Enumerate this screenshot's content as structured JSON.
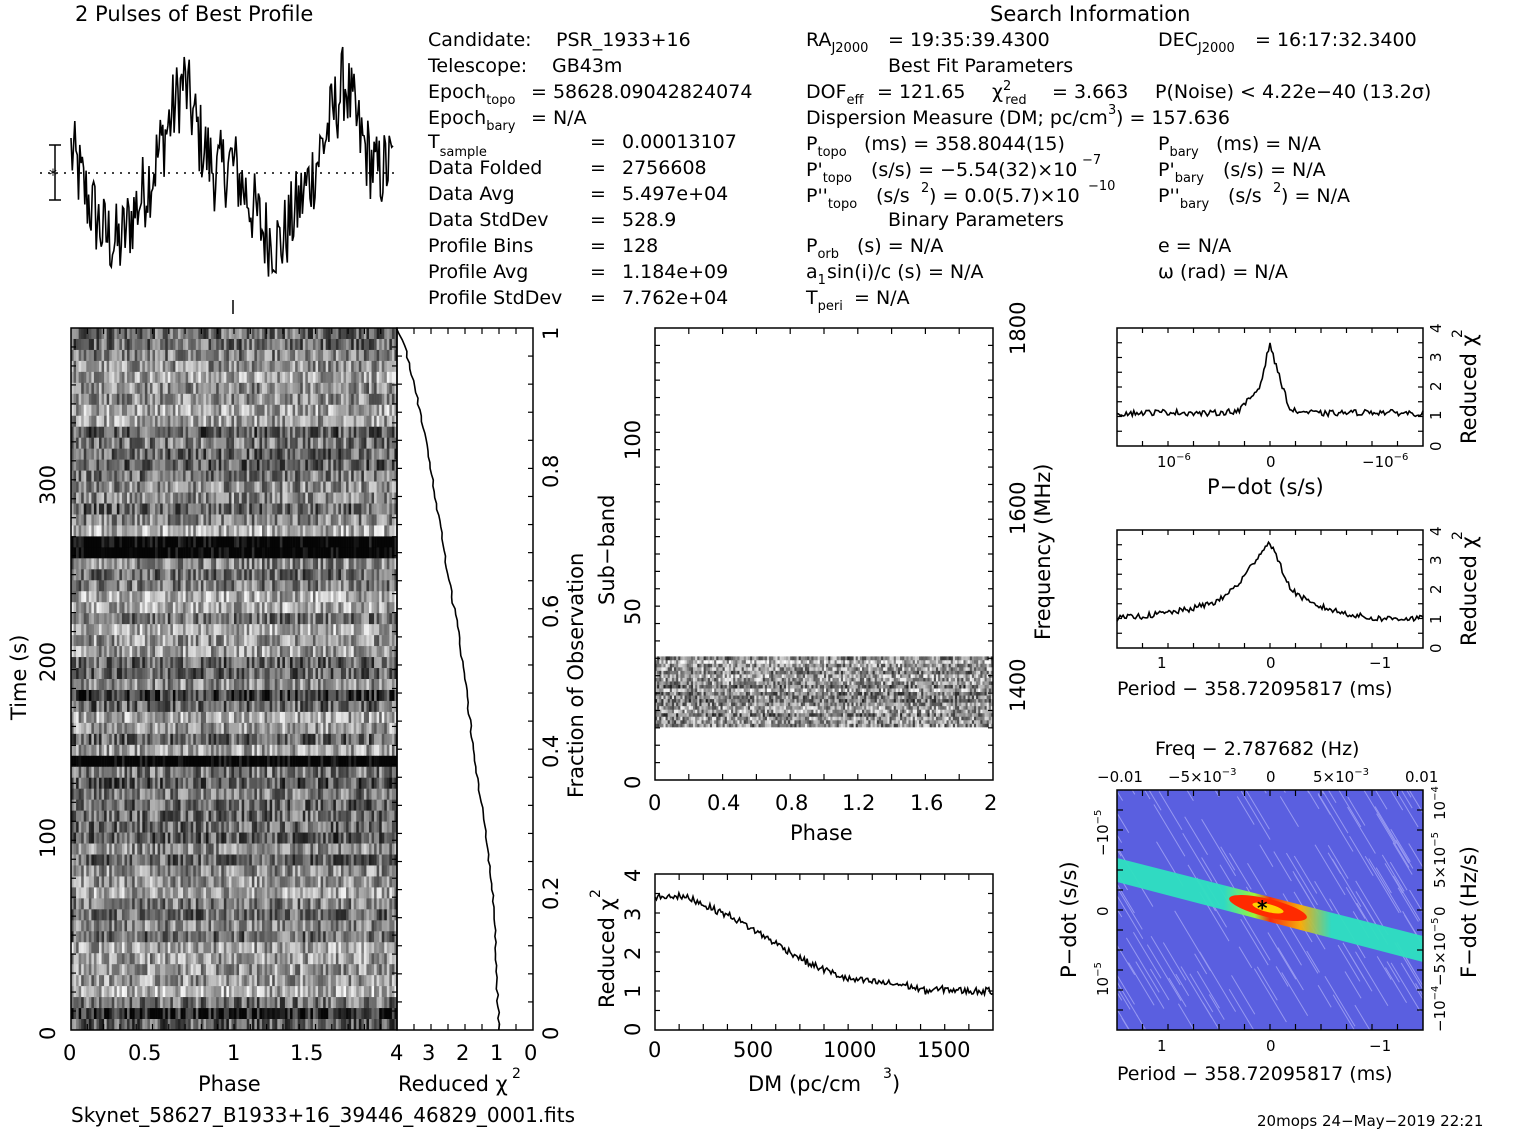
{
  "titles": {
    "profile_title": "2 Pulses of Best Profile",
    "search_title": "Search Information",
    "best_fit_title": "Best Fit Parameters",
    "binary_title": "Binary Parameters"
  },
  "header": {
    "candidate_label": "Candidate:",
    "candidate_value": "PSR_1933+16",
    "telescope_label": "Telescope:",
    "telescope_value": "GB43m",
    "epoch_topo_value": "= 58628.09042824074",
    "epoch_bary_value": "= N/A",
    "tsample_value": "0.00013107",
    "data_folded_label": "Data Folded",
    "data_folded_value": "2756608",
    "data_avg_label": "Data Avg",
    "data_avg_value": "5.497e+04",
    "data_stddev_label": "Data StdDev",
    "data_stddev_value": "528.9",
    "profile_bins_label": "Profile Bins",
    "profile_bins_value": "128",
    "profile_avg_label": "Profile Avg",
    "profile_avg_value": "1.184e+09",
    "profile_stddev_label": "Profile StdDev",
    "profile_stddev_value": "7.762e+04",
    "eq": "="
  },
  "search": {
    "ra": "= 19:35:39.4300",
    "dec": "= 16:17:32.3400",
    "dof_value": "= 121.65",
    "chi2_value": "= 3.663",
    "pnoise": "P(Noise) < 4.22e−40   (13.2σ)",
    "dm_line": "Dispersion Measure (DM; pc/cm",
    "dm_value": ") = 157.636",
    "ptopo": "(ms) =  358.8044(15)",
    "pbary": "(ms) = N/A",
    "pdtopo": "(s/s) = −5.54(32)×10",
    "pdtopo_exp": "−7",
    "pdbary": "(s/s) = N/A",
    "pddtopo": "(s/s",
    "pddtopo_val": ") = 0.0(5.7)×10",
    "pddtopo_exp": "−10",
    "pddbary": "(s/s",
    "pddbary_val": ") = N/A",
    "porb": "(s) = N/A",
    "asini": "sin(i)/c (s) = N/A",
    "tperi": "= N/A",
    "ecc": "e = N/A",
    "omega": "ω (rad) = N/A"
  },
  "axes_labels": {
    "time": "Time (s)",
    "phase": "Phase",
    "reduced_chi2": "Reduced χ",
    "fraction": "Fraction of Observation",
    "subband": "Sub−band",
    "frequency": "Frequency (MHz)",
    "dm": "DM (pc/cm",
    "pdot": "P−dot (s/s)",
    "period": "Period − 358.72095817 (ms)",
    "freq_top": "Freq − 2.787682 (Hz)",
    "fdot": "F−dot (Hz/s)"
  },
  "footer": {
    "filename": "Skynet_58627_B1933+16_39446_46829_0001.fits",
    "stamp": "20mops 24−May−2019 22:21"
  },
  "colors": {
    "ink": "#000000",
    "bg": "#ffffff",
    "map_bg": "#5a5fe0",
    "map_hot": "#ff2a00",
    "map_mid": "#2ee0c0"
  },
  "chart_data": [
    {
      "type": "line",
      "title": "2 Pulses of Best Profile",
      "x": [
        0,
        0.1,
        0.2,
        0.3,
        0.4,
        0.5,
        0.6,
        0.7,
        0.8,
        0.9,
        1.0,
        1.1,
        1.2,
        1.3,
        1.4,
        1.5,
        1.6,
        1.7,
        1.8,
        1.9,
        2.0
      ],
      "values": [
        0.55,
        0.35,
        0.2,
        0.15,
        0.3,
        0.45,
        0.65,
        0.85,
        0.6,
        0.45,
        0.5,
        0.35,
        0.2,
        0.15,
        0.3,
        0.45,
        0.65,
        0.85,
        0.6,
        0.45,
        0.5
      ]
    },
    {
      "type": "heatmap",
      "title": "",
      "xlabel": "Phase",
      "ylabel": "Time (s)",
      "xlim": [
        0,
        2
      ],
      "ylim": [
        0,
        370
      ],
      "xticks": [
        "0",
        "0.5",
        "1",
        "1.5"
      ],
      "yticks": [
        "0",
        "100",
        "200",
        "300"
      ],
      "dark_rows_s": [
        10,
        140,
        178,
        255
      ]
    },
    {
      "type": "line",
      "xlabel": "Reduced χ2",
      "ylabel": "Fraction of Observation",
      "xlim": [
        4,
        0
      ],
      "ylim": [
        0,
        1
      ],
      "xticks": [
        "4",
        "3",
        "2",
        "1",
        "0"
      ],
      "yticks": [
        "0",
        "0.2",
        "0.4",
        "0.6",
        "0.8",
        "1"
      ],
      "x": [
        1.0,
        1.05,
        1.1,
        1.2,
        1.4,
        1.6,
        1.8,
        2.0,
        2.2,
        2.4,
        2.6,
        2.8,
        3.0,
        3.2,
        3.4,
        3.6,
        3.8,
        4.0
      ],
      "y": [
        0.0,
        0.06,
        0.12,
        0.2,
        0.28,
        0.35,
        0.42,
        0.5,
        0.57,
        0.62,
        0.68,
        0.74,
        0.8,
        0.85,
        0.9,
        0.94,
        0.98,
        1.0
      ]
    },
    {
      "type": "heatmap",
      "xlabel": "Phase",
      "ylabel": "Sub−band",
      "y2label": "Frequency (MHz)",
      "xlim": [
        0,
        2
      ],
      "ylim": [
        0,
        128
      ],
      "xticks": [
        "0",
        "0.4",
        "0.8",
        "1.2",
        "1.6",
        "2"
      ],
      "yticks": [
        "0",
        "50",
        "100"
      ],
      "y2ticks": [
        "1400",
        "1600",
        "1800"
      ],
      "band_subbands": [
        15,
        35
      ]
    },
    {
      "type": "line",
      "xlabel": "DM (pc/cm3)",
      "ylabel": "Reduced χ2",
      "xlim": [
        0,
        1750
      ],
      "ylim": [
        0,
        4
      ],
      "xticks": [
        "0",
        "500",
        "1000",
        "1500"
      ],
      "yticks": [
        "0",
        "1",
        "2",
        "3",
        "4"
      ],
      "x": [
        0,
        100,
        200,
        300,
        400,
        500,
        600,
        700,
        800,
        900,
        1000,
        1100,
        1200,
        1300,
        1400,
        1500,
        1600,
        1750
      ],
      "y": [
        3.4,
        3.45,
        3.35,
        3.1,
        2.9,
        2.6,
        2.3,
        2.0,
        1.7,
        1.5,
        1.3,
        1.25,
        1.2,
        1.15,
        1.0,
        1.05,
        1.0,
        1.0
      ]
    },
    {
      "type": "line",
      "xlabel": "P−dot (s/s)",
      "ylabel": "Reduced χ2",
      "xlim": [
        1.5e-06,
        -1.5e-06
      ],
      "ylim": [
        0,
        4
      ],
      "xticks": [
        "10−6",
        "0",
        "−10−6"
      ],
      "yticks": [
        "0",
        "1",
        "2",
        "3",
        "4"
      ],
      "x": [
        1.5,
        1.0,
        0.6,
        0.3,
        0.1,
        0.0,
        -0.05,
        -0.2,
        -0.5,
        -1.0,
        -1.5
      ],
      "y": [
        1.1,
        1.15,
        1.1,
        1.2,
        2.0,
        3.5,
        2.8,
        1.2,
        1.1,
        1.15,
        1.1
      ]
    },
    {
      "type": "line",
      "xlabel": "Period − 358.72095817 (ms)",
      "ylabel": "Reduced χ2",
      "xlim": [
        1.5,
        -1.5
      ],
      "ylim": [
        0,
        4
      ],
      "xticks": [
        "1",
        "0",
        "−1"
      ],
      "yticks": [
        "0",
        "1",
        "2",
        "3",
        "4"
      ],
      "x": [
        1.5,
        1.2,
        0.8,
        0.5,
        0.3,
        0.1,
        0.0,
        -0.2,
        -0.4,
        -0.7,
        -1.0,
        -1.5
      ],
      "y": [
        1.0,
        1.1,
        1.3,
        1.6,
        2.2,
        3.2,
        3.6,
        2.0,
        1.5,
        1.2,
        1.0,
        1.0
      ]
    },
    {
      "type": "heatmap",
      "xlabel": "Period − 358.72095817 (ms)",
      "ylabel": "P−dot (s/s)",
      "x2label": "Freq − 2.787682 (Hz)",
      "y2label": "F−dot (Hz/s)",
      "xticks": [
        "1",
        "0",
        "−1"
      ],
      "x2ticks": [
        "−0.01",
        "−5×10−3",
        "0",
        "5×10−3",
        "0.01"
      ],
      "yticks": [
        "−10−5",
        "0",
        "10−5"
      ],
      "y2ticks": [
        "−10−4",
        "−5×10−5",
        "0",
        "5×10−5",
        "10−4"
      ]
    }
  ]
}
